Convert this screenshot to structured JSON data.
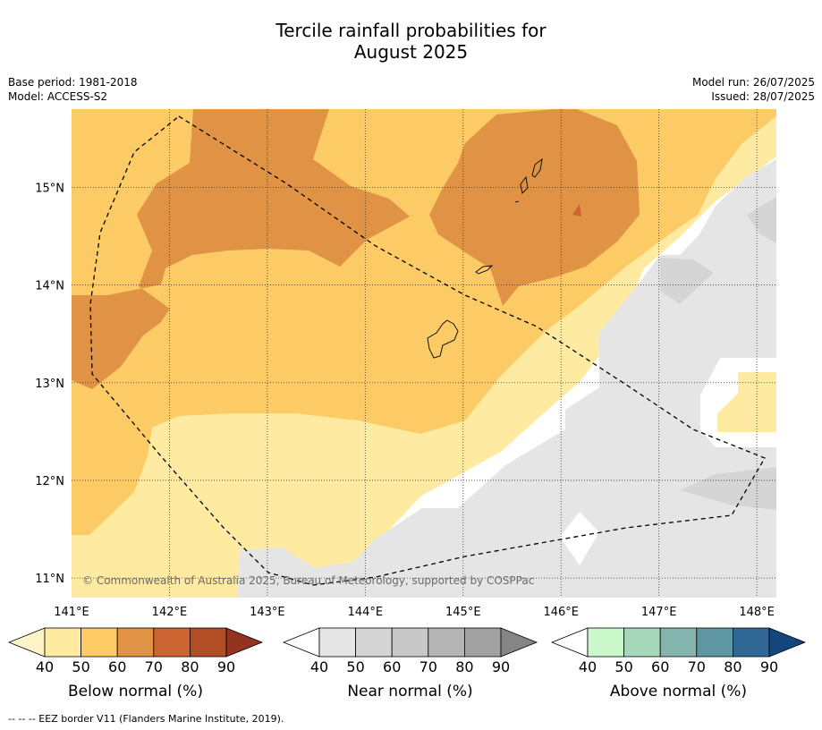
{
  "header": {
    "title_line1": "Tercile rainfall probabilities for",
    "title_line2": "August 2025",
    "base_period": "Base period: 1981-2018",
    "model": "Model: ACCESS-S2",
    "model_run": "Model run: 26/07/2025",
    "issued": "Issued: 28/07/2025"
  },
  "map": {
    "lon_range": [
      141,
      148.2
    ],
    "lat_range": [
      10.8,
      15.8
    ],
    "lon_ticks": [
      "141°E",
      "142°E",
      "143°E",
      "144°E",
      "145°E",
      "146°E",
      "147°E",
      "148°E"
    ],
    "lat_ticks": [
      "15°N",
      "14°N",
      "13°N",
      "12°N",
      "11°N"
    ],
    "copyright": "© Commonwealth of Australia 2025, Bureau of Meteorology, supported by COSPPac",
    "gridlines": true
  },
  "colorbars": [
    {
      "label": "Below normal (%)",
      "ticks": [
        "40",
        "50",
        "60",
        "70",
        "80",
        "90"
      ],
      "colors": [
        "#fff4c8",
        "#feeba1",
        "#fdcb66",
        "#e19345",
        "#cd6532",
        "#b24e26",
        "#943420"
      ]
    },
    {
      "label": "Near normal (%)",
      "ticks": [
        "40",
        "50",
        "60",
        "70",
        "80",
        "90"
      ],
      "colors": [
        "#ffffff",
        "#e5e5e5",
        "#d5d5d5",
        "#c8c8c8",
        "#b4b4b4",
        "#a1a1a1",
        "#858585"
      ]
    },
    {
      "label": "Above normal (%)",
      "ticks": [
        "40",
        "50",
        "60",
        "70",
        "80",
        "90"
      ],
      "colors": [
        "#ffffff",
        "#caf8cb",
        "#a6d7bb",
        "#83b5ae",
        "#5e96a1",
        "#316795",
        "#14457c"
      ]
    }
  ],
  "footnote": "--  --  -- EEZ border V11 (Flanders Marine Institute, 2019)."
}
